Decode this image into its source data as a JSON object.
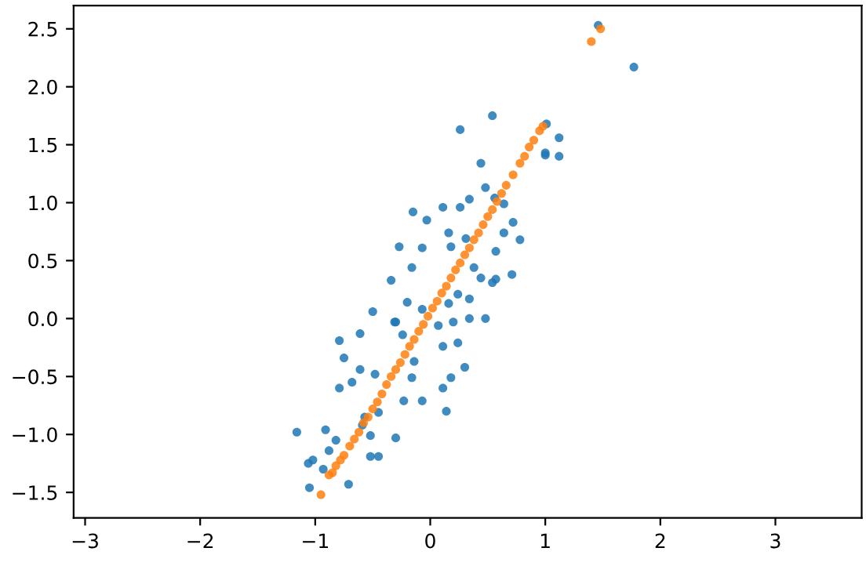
{
  "chart_data": {
    "type": "scatter",
    "xlim": [
      -3.1,
      3.75
    ],
    "ylim": [
      -1.72,
      2.7
    ],
    "xticks": [
      {
        "value": -3,
        "label": "−3"
      },
      {
        "value": -2,
        "label": "−2"
      },
      {
        "value": -1,
        "label": "−1"
      },
      0,
      1,
      2,
      3
    ],
    "yticks": [
      {
        "value": -1.5,
        "label": "−1.5"
      },
      {
        "value": -1.0,
        "label": "−1.0"
      },
      {
        "value": -0.5,
        "label": "−0.5"
      },
      {
        "value": 0.0,
        "label": "0.0"
      },
      {
        "value": 0.5,
        "label": "0.5"
      },
      {
        "value": 1.0,
        "label": "1.0"
      },
      {
        "value": 1.5,
        "label": "1.5"
      },
      {
        "value": 2.0,
        "label": "2.0"
      },
      {
        "value": 2.5,
        "label": "2.5"
      }
    ],
    "grid": false,
    "legend": false,
    "marker": "circle",
    "series": [
      {
        "color": "#1f77b4",
        "x": [
          1.46,
          1.77,
          1.12,
          1.0,
          1.12,
          1.01,
          0.54,
          0.26,
          0.44,
          1.0,
          -0.15,
          0.11,
          0.26,
          0.34,
          -0.03,
          -0.27,
          -0.34,
          -0.5,
          -0.16,
          -0.07,
          0.16,
          0.18,
          0.31,
          0.72,
          0.78,
          0.64,
          0.57,
          0.71,
          0.57,
          0.44,
          0.38,
          0.24,
          0.16,
          0.48,
          0.34,
          0.2,
          -0.3,
          -0.2,
          -0.07,
          0.07,
          -0.79,
          -0.61,
          -0.75,
          -0.79,
          -0.68,
          -0.61,
          -0.48,
          -0.31,
          -0.24,
          -0.14,
          -0.16,
          -0.23,
          -0.07,
          0.14,
          0.11,
          0.18,
          0.3,
          0.11,
          0.24,
          0.34,
          0.54,
          -1.16,
          -0.91,
          -0.82,
          -0.52,
          -0.3,
          -0.52,
          -0.45,
          -0.88,
          -1.06,
          -0.93,
          -1.05,
          -0.71,
          -0.59,
          -0.45,
          0.56,
          0.48,
          0.64,
          -0.57,
          -1.02
        ],
        "values": [
          2.53,
          2.17,
          1.56,
          1.41,
          1.4,
          1.68,
          1.75,
          1.63,
          1.34,
          1.43,
          0.92,
          0.96,
          0.96,
          1.03,
          0.85,
          0.62,
          0.33,
          0.06,
          0.44,
          0.61,
          0.74,
          0.62,
          0.69,
          0.83,
          0.68,
          0.74,
          0.58,
          0.38,
          0.34,
          0.35,
          0.44,
          0.21,
          0.13,
          0.0,
          0.0,
          -0.03,
          -0.03,
          0.14,
          0.08,
          -0.06,
          -0.19,
          -0.13,
          -0.34,
          -0.6,
          -0.55,
          -0.44,
          -0.48,
          -0.03,
          -0.14,
          -0.37,
          -0.51,
          -0.71,
          -0.71,
          -0.8,
          -0.6,
          -0.51,
          -0.42,
          -0.24,
          -0.21,
          0.17,
          0.31,
          -0.98,
          -0.96,
          -1.05,
          -1.01,
          -1.03,
          -1.19,
          -1.19,
          -1.14,
          -1.25,
          -1.3,
          -1.46,
          -1.43,
          -0.92,
          -0.81,
          1.04,
          1.13,
          0.99,
          -0.85,
          -1.22
        ]
      },
      {
        "color": "#ff7f0e",
        "x": [
          -0.95,
          -0.88,
          -0.85,
          -0.82,
          -0.78,
          -0.75,
          -0.7,
          -0.66,
          -0.62,
          -0.58,
          -0.54,
          -0.5,
          -0.46,
          -0.42,
          -0.38,
          -0.34,
          -0.3,
          -0.26,
          -0.22,
          -0.18,
          -0.14,
          -0.1,
          -0.06,
          -0.02,
          0.02,
          0.06,
          0.1,
          0.14,
          0.18,
          0.22,
          0.26,
          0.3,
          0.34,
          0.38,
          0.42,
          0.46,
          0.5,
          0.54,
          0.58,
          0.62,
          0.66,
          0.72,
          0.78,
          0.82,
          0.86,
          0.9,
          0.95,
          0.98,
          1.4,
          1.48
        ],
        "values": [
          -1.52,
          -1.35,
          -1.33,
          -1.27,
          -1.22,
          -1.18,
          -1.1,
          -1.04,
          -0.98,
          -0.9,
          -0.85,
          -0.78,
          -0.72,
          -0.65,
          -0.57,
          -0.5,
          -0.44,
          -0.38,
          -0.31,
          -0.24,
          -0.18,
          -0.11,
          -0.05,
          0.02,
          0.09,
          0.15,
          0.22,
          0.28,
          0.35,
          0.42,
          0.48,
          0.55,
          0.61,
          0.68,
          0.74,
          0.81,
          0.88,
          0.94,
          1.01,
          1.08,
          1.15,
          1.24,
          1.34,
          1.4,
          1.48,
          1.54,
          1.62,
          1.66,
          2.39,
          2.5
        ]
      }
    ]
  }
}
